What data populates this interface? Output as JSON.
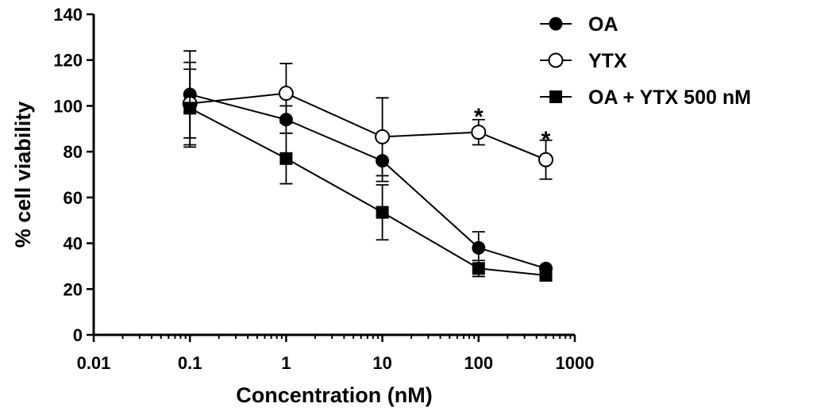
{
  "chart_data": {
    "type": "line",
    "title": "",
    "xlabel": "Concentration (nM)",
    "ylabel": "% cell viability",
    "xscale": "log",
    "xlim": [
      0.01,
      1000
    ],
    "ylim": [
      0,
      140
    ],
    "grid": false,
    "legend_position": "top-right",
    "x_ticks": [
      {
        "value": 0.01,
        "label": "0.01"
      },
      {
        "value": 0.1,
        "label": "0.1"
      },
      {
        "value": 1,
        "label": "1"
      },
      {
        "value": 10,
        "label": "10"
      },
      {
        "value": 100,
        "label": "100"
      },
      {
        "value": 1000,
        "label": "1000"
      }
    ],
    "y_ticks": [
      {
        "value": 0,
        "label": "0"
      },
      {
        "value": 20,
        "label": "20"
      },
      {
        "value": 40,
        "label": "40"
      },
      {
        "value": 60,
        "label": "60"
      },
      {
        "value": 80,
        "label": "80"
      },
      {
        "value": 100,
        "label": "100"
      },
      {
        "value": 120,
        "label": "120"
      },
      {
        "value": 140,
        "label": "140"
      }
    ],
    "series": [
      {
        "name": "OA",
        "marker": "filled-circle",
        "x": [
          0.1,
          1,
          10,
          100,
          500
        ],
        "y": [
          105,
          94,
          76,
          38,
          29
        ],
        "err": [
          19,
          6,
          9,
          7,
          1
        ]
      },
      {
        "name": "YTX",
        "marker": "open-circle",
        "x": [
          0.1,
          1,
          10,
          100,
          500
        ],
        "y": [
          101,
          105.5,
          86.5,
          88.5,
          76.5
        ],
        "err": [
          18,
          13,
          17,
          5.5,
          8.5
        ]
      },
      {
        "name": "OA + YTX 500 nM",
        "marker": "filled-square",
        "x": [
          0.1,
          1,
          10,
          100,
          500
        ],
        "y": [
          99,
          77,
          53.5,
          29,
          26
        ],
        "err": [
          17,
          11,
          12,
          3.5,
          1
        ]
      }
    ],
    "annotations": [
      {
        "text": "*",
        "x": 100,
        "y": 98
      },
      {
        "text": "*",
        "x": 500,
        "y": 88
      }
    ],
    "colors": {
      "line": "#000000",
      "marker": "#000000",
      "open_fill": "#ffffff"
    }
  }
}
